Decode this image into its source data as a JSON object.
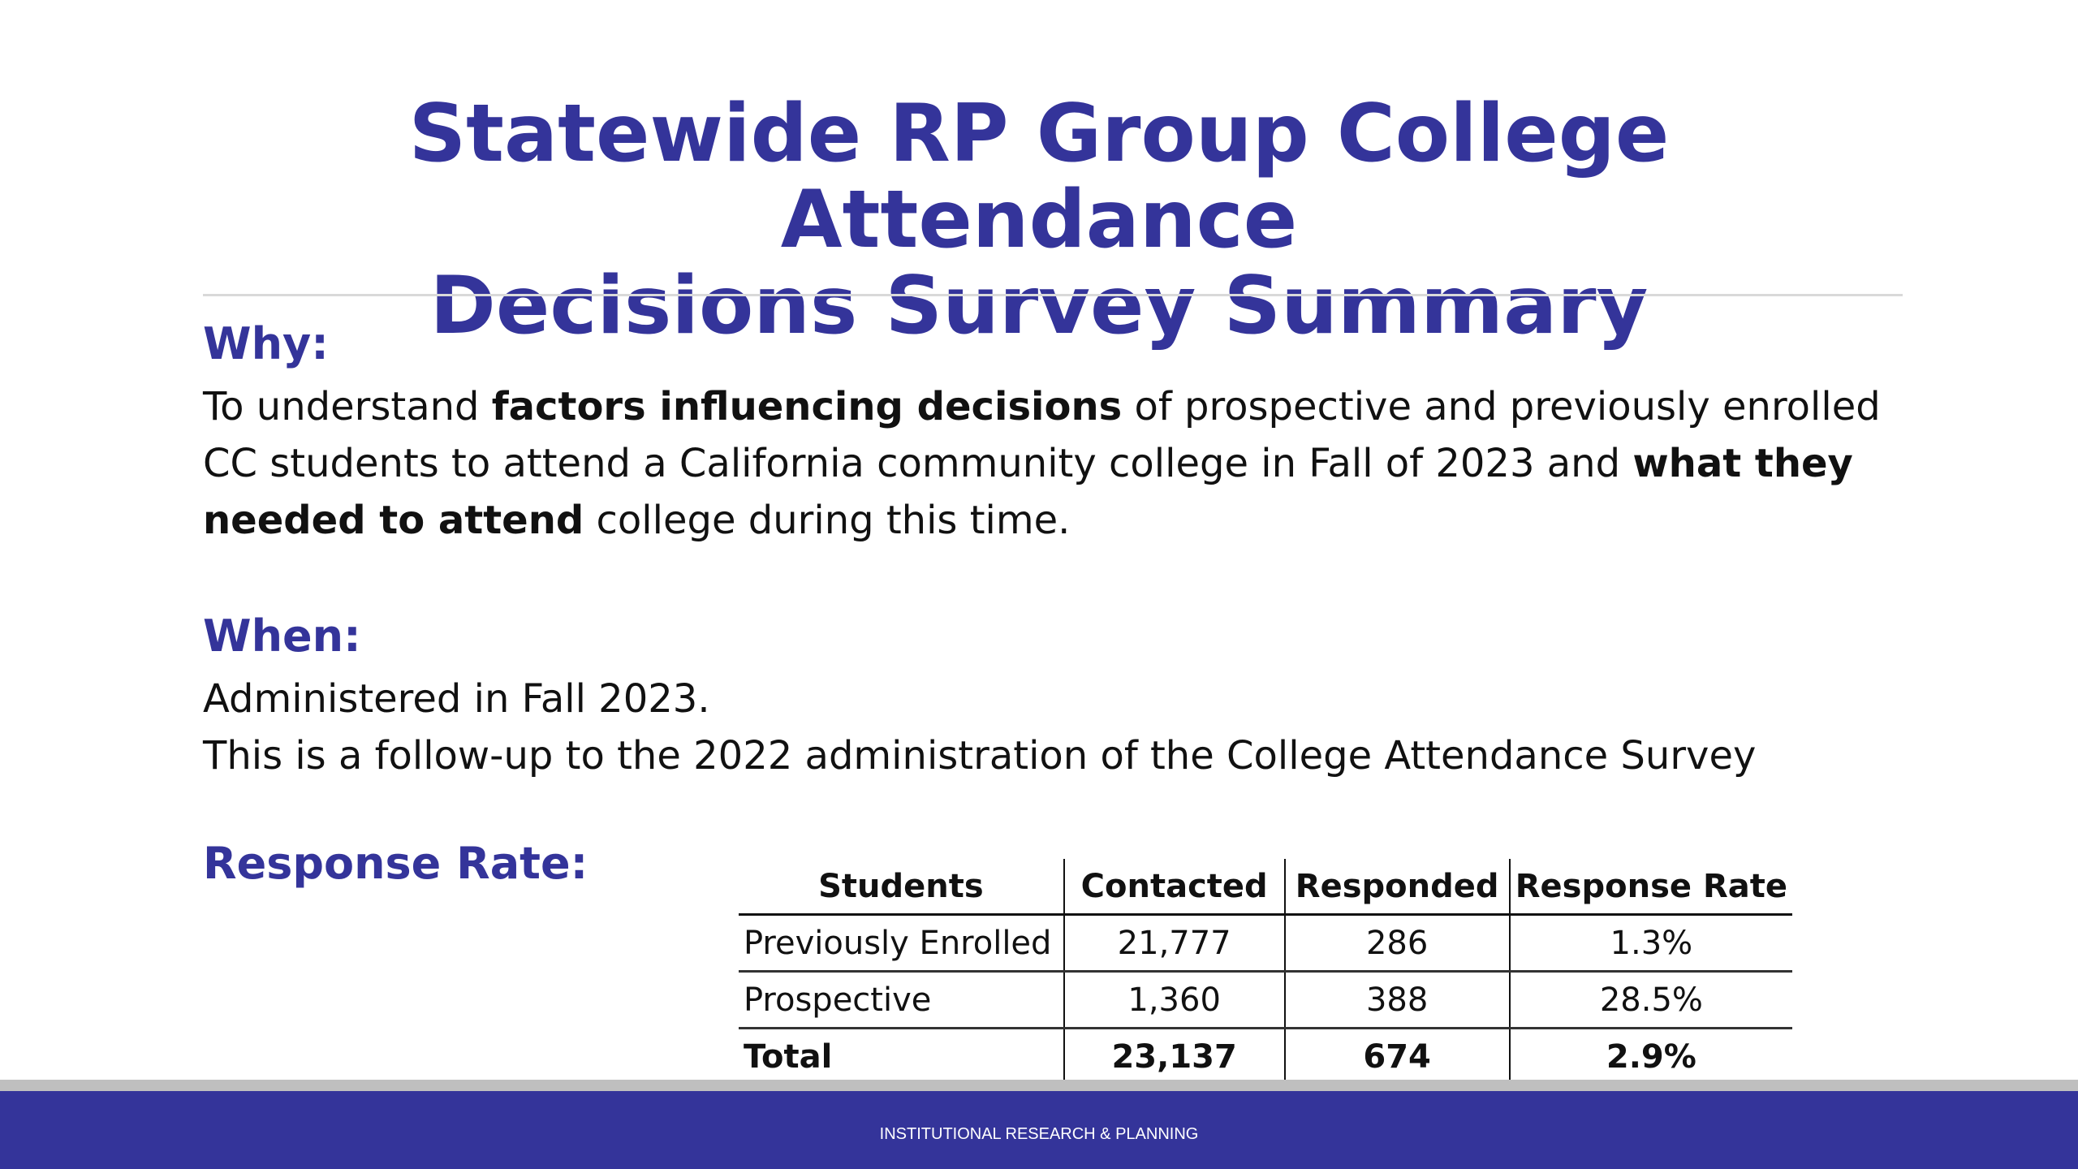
{
  "title": {
    "line1": "Statewide RP Group College Attendance",
    "line2": "Decisions Survey Summary"
  },
  "why": {
    "heading": "Why:",
    "p1": "To understand ",
    "b1": "factors influencing decisions",
    "p2": " of prospective and previously enrolled CC students to attend a California community college in Fall of 2023 and ",
    "b2": "what they needed to attend",
    "p3": " college during this time."
  },
  "when": {
    "heading": "When:",
    "line1": "Administered in Fall 2023.",
    "line2": "This is a follow-up to the 2022 administration of the College Attendance Survey"
  },
  "response_rate": {
    "heading": "Response Rate:",
    "table": {
      "headers": [
        "Students",
        "Contacted",
        "Responded",
        "Response Rate"
      ],
      "rows": [
        [
          "Previously Enrolled",
          "21,777",
          "286",
          "1.3%"
        ],
        [
          "Prospective",
          "1,360",
          "388",
          "28.5%"
        ],
        [
          "Total",
          "23,137",
          "674",
          "2.9%"
        ]
      ]
    }
  },
  "footer": {
    "text": "INSTITUTIONAL RESEARCH & PLANNING"
  },
  "colors": {
    "accent": "#34349a",
    "footer_band": "#34349a",
    "footer_stripe": "#bfbfbf"
  }
}
